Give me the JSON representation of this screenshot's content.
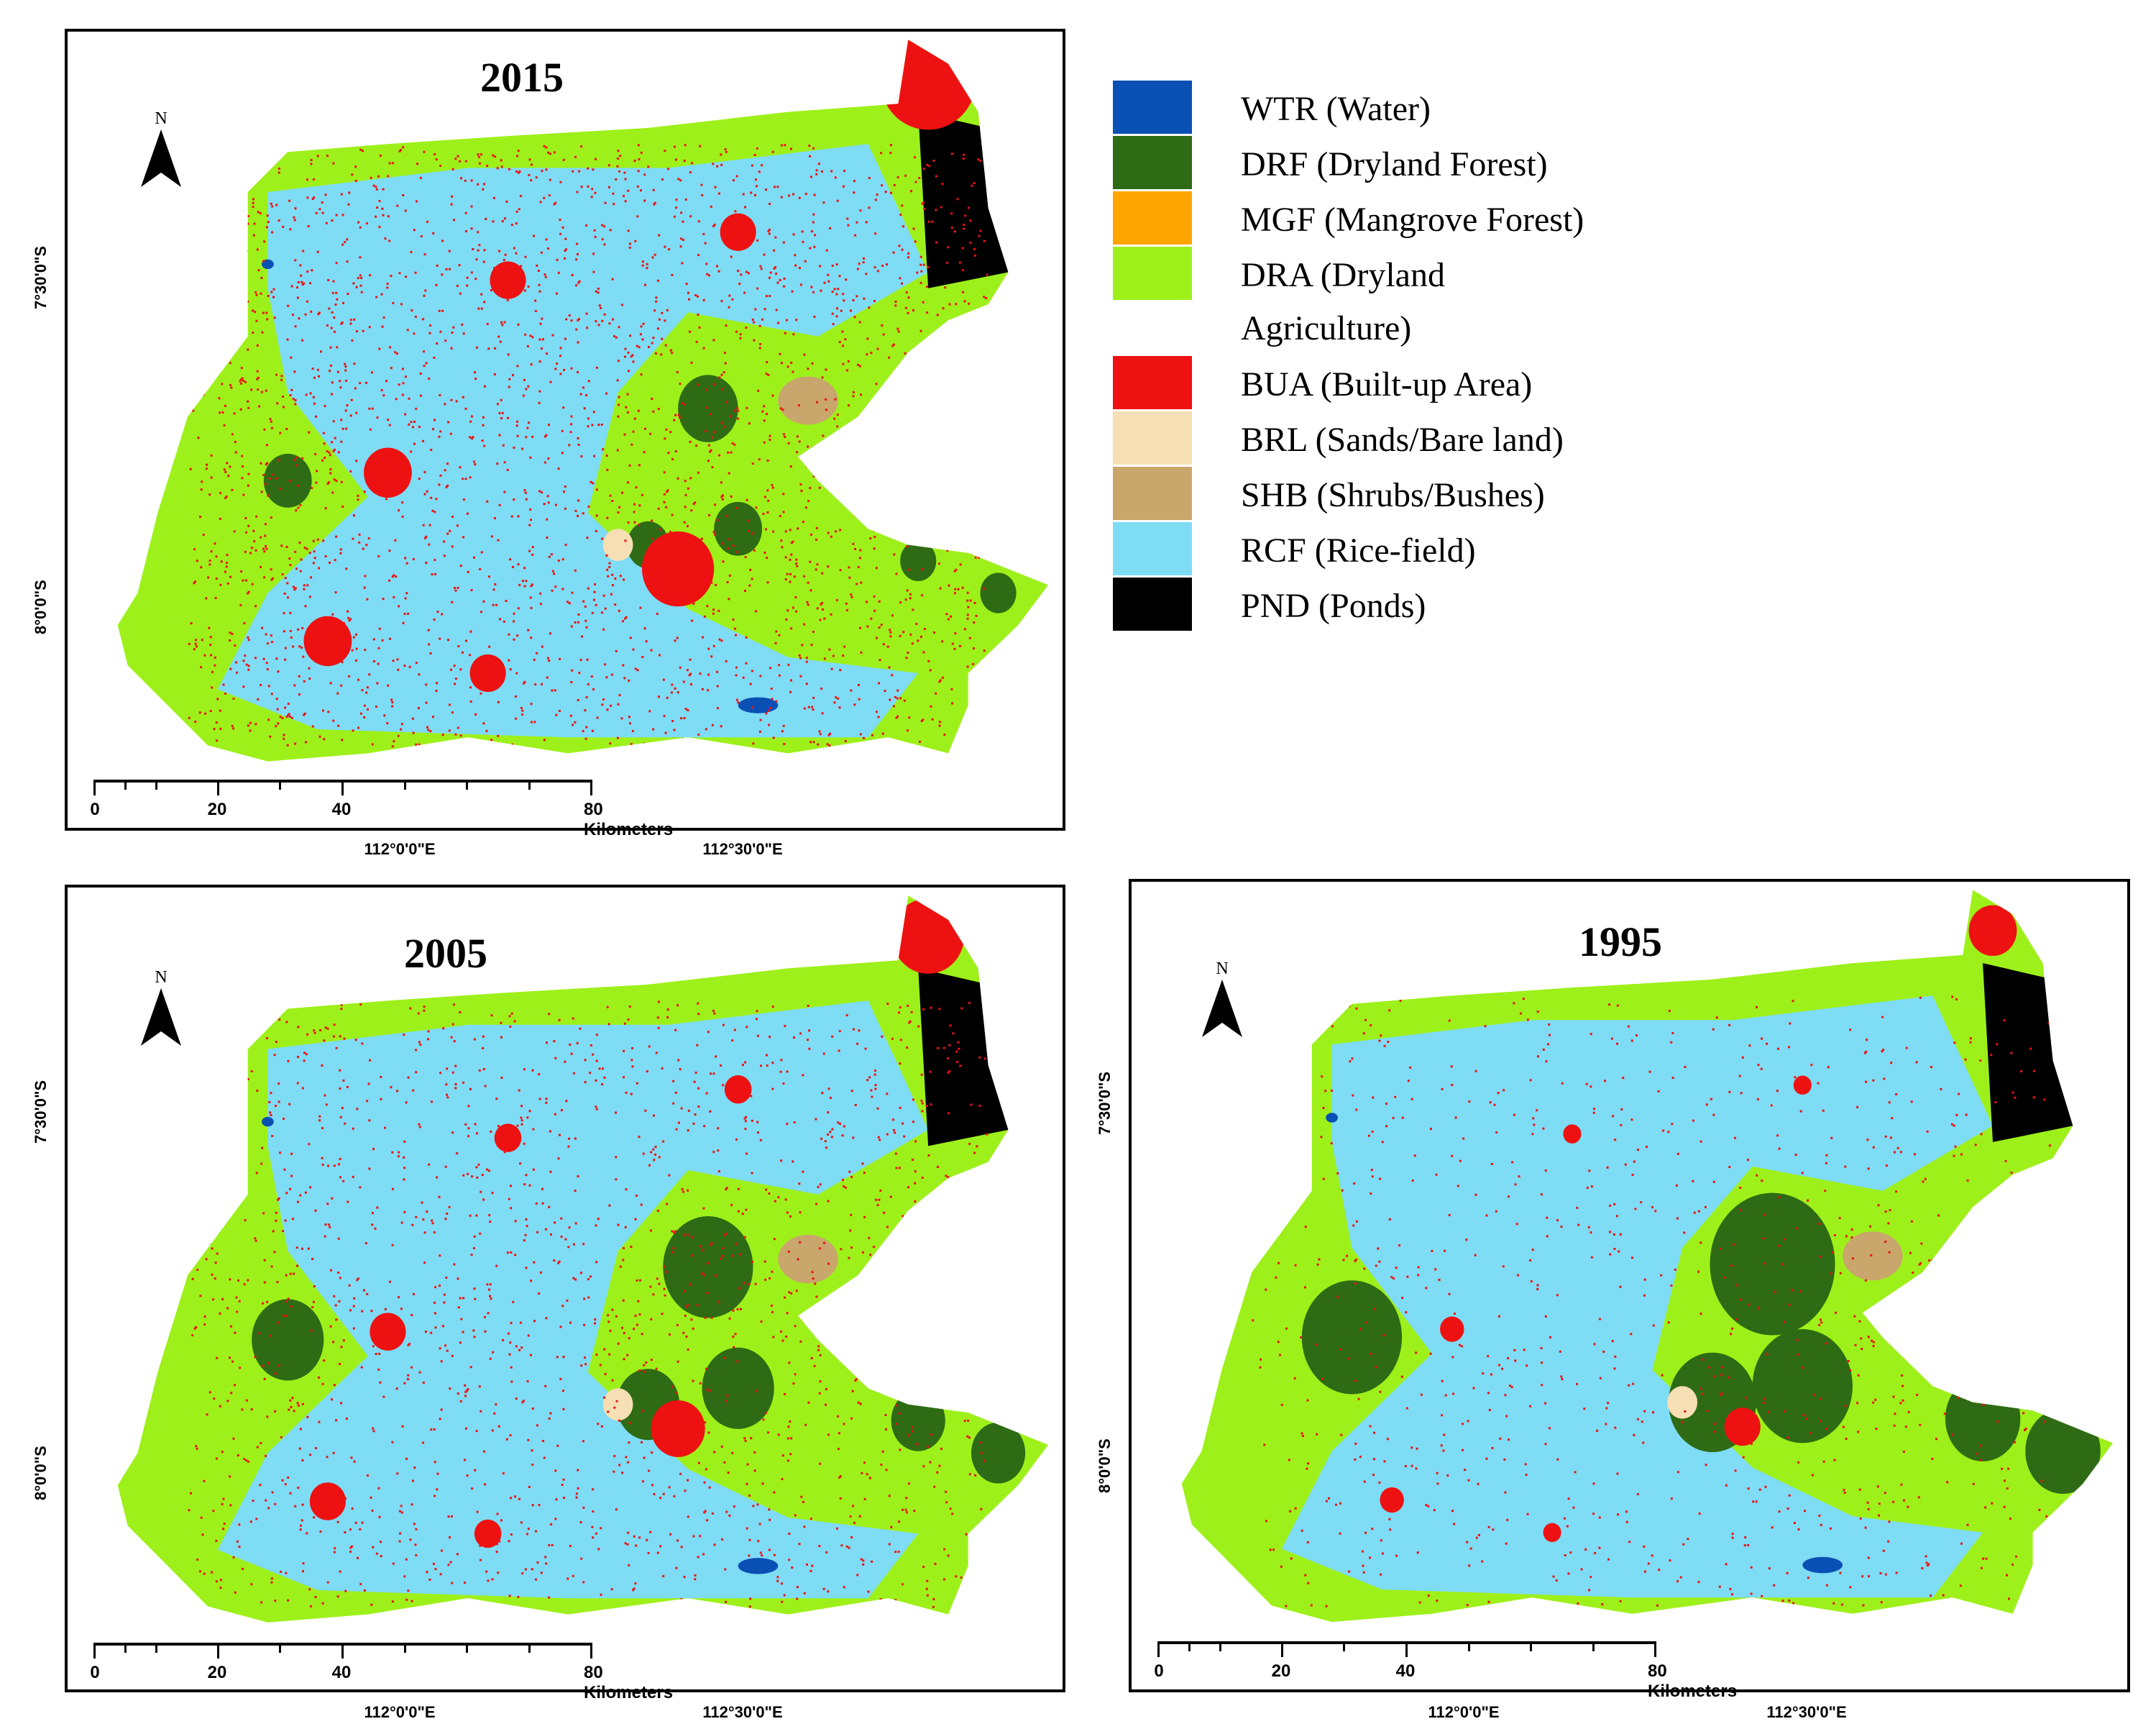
{
  "maps": [
    {
      "key": "m2015",
      "year": "2015"
    },
    {
      "key": "m2005",
      "year": "2005"
    },
    {
      "key": "m1995",
      "year": "1995"
    }
  ],
  "north_letter": "N",
  "lat_labels": [
    "7°30'0\"S",
    "8°0'0\"S"
  ],
  "lon_labels": [
    "112°0'0\"E",
    "112°30'0\"E"
  ],
  "scale": {
    "ticks": [
      "0",
      "20",
      "40"
    ],
    "end_label": "80 Kilometers"
  },
  "legend": [
    {
      "label": "WTR (Water)",
      "color": "#0a50b4"
    },
    {
      "label": "DRF (Dryland Forest)",
      "color": "#2e6b14"
    },
    {
      "label": "MGF (Mangrove Forest)",
      "color": "#ffa500"
    },
    {
      "label": "DRA (Dryland",
      "label2": "Agriculture)",
      "color": "#9ef01a"
    },
    {
      "label": "BUA (Built-up Area)",
      "color": "#ee1111"
    },
    {
      "label": "BRL (Sands/Bare land)",
      "color": "#f6dfb4"
    },
    {
      "label": "SHB (Shrubs/Bushes)",
      "color": "#c9a66b"
    },
    {
      "label": "RCF (Rice-field)",
      "color": "#7fdcf5"
    },
    {
      "label": "PND (Ponds)",
      "color": "#000000"
    }
  ]
}
